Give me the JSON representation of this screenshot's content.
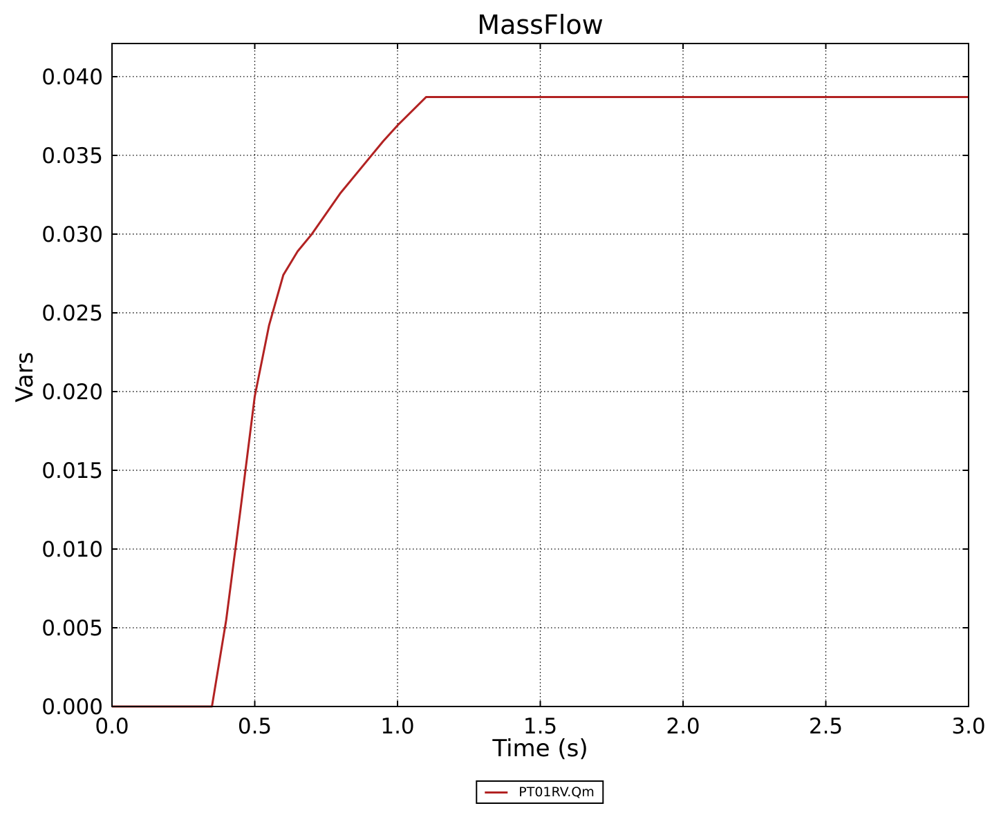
{
  "figure": {
    "background_color": "#ffffff",
    "spine_color": "#000000",
    "grid_color": "#000000"
  },
  "chart_data": {
    "type": "line",
    "title": "MassFlow",
    "xlabel": "Time (s)",
    "ylabel": "Vars",
    "xlim": [
      0.0,
      3.0
    ],
    "ylim": [
      0.0,
      0.0421
    ],
    "xticks": [
      0.0,
      0.5,
      1.0,
      1.5,
      2.0,
      2.5,
      3.0
    ],
    "xtick_labels": [
      "0.0",
      "0.5",
      "1.0",
      "1.5",
      "2.0",
      "2.5",
      "3.0"
    ],
    "yticks": [
      0.0,
      0.005,
      0.01,
      0.015,
      0.02,
      0.025,
      0.03,
      0.035,
      0.04
    ],
    "ytick_labels": [
      "0.000",
      "0.005",
      "0.010",
      "0.015",
      "0.020",
      "0.025",
      "0.030",
      "0.035",
      "0.040"
    ],
    "grid": true,
    "grid_style": "dotted",
    "legend_position": "below-axes-center",
    "series": [
      {
        "name": "PT01RV.Qm",
        "color": "#b22222",
        "line_width": 3,
        "x": [
          0.0,
          0.35,
          0.4,
          0.45,
          0.5,
          0.55,
          0.6,
          0.65,
          0.7,
          0.75,
          0.8,
          0.85,
          0.9,
          0.95,
          1.0,
          1.05,
          1.1,
          3.0
        ],
        "y": [
          0.0,
          0.0,
          0.0055,
          0.0125,
          0.0197,
          0.0242,
          0.0274,
          0.0289,
          0.03,
          0.0313,
          0.0326,
          0.0337,
          0.0348,
          0.0359,
          0.0369,
          0.0378,
          0.0387,
          0.0387
        ]
      }
    ]
  }
}
